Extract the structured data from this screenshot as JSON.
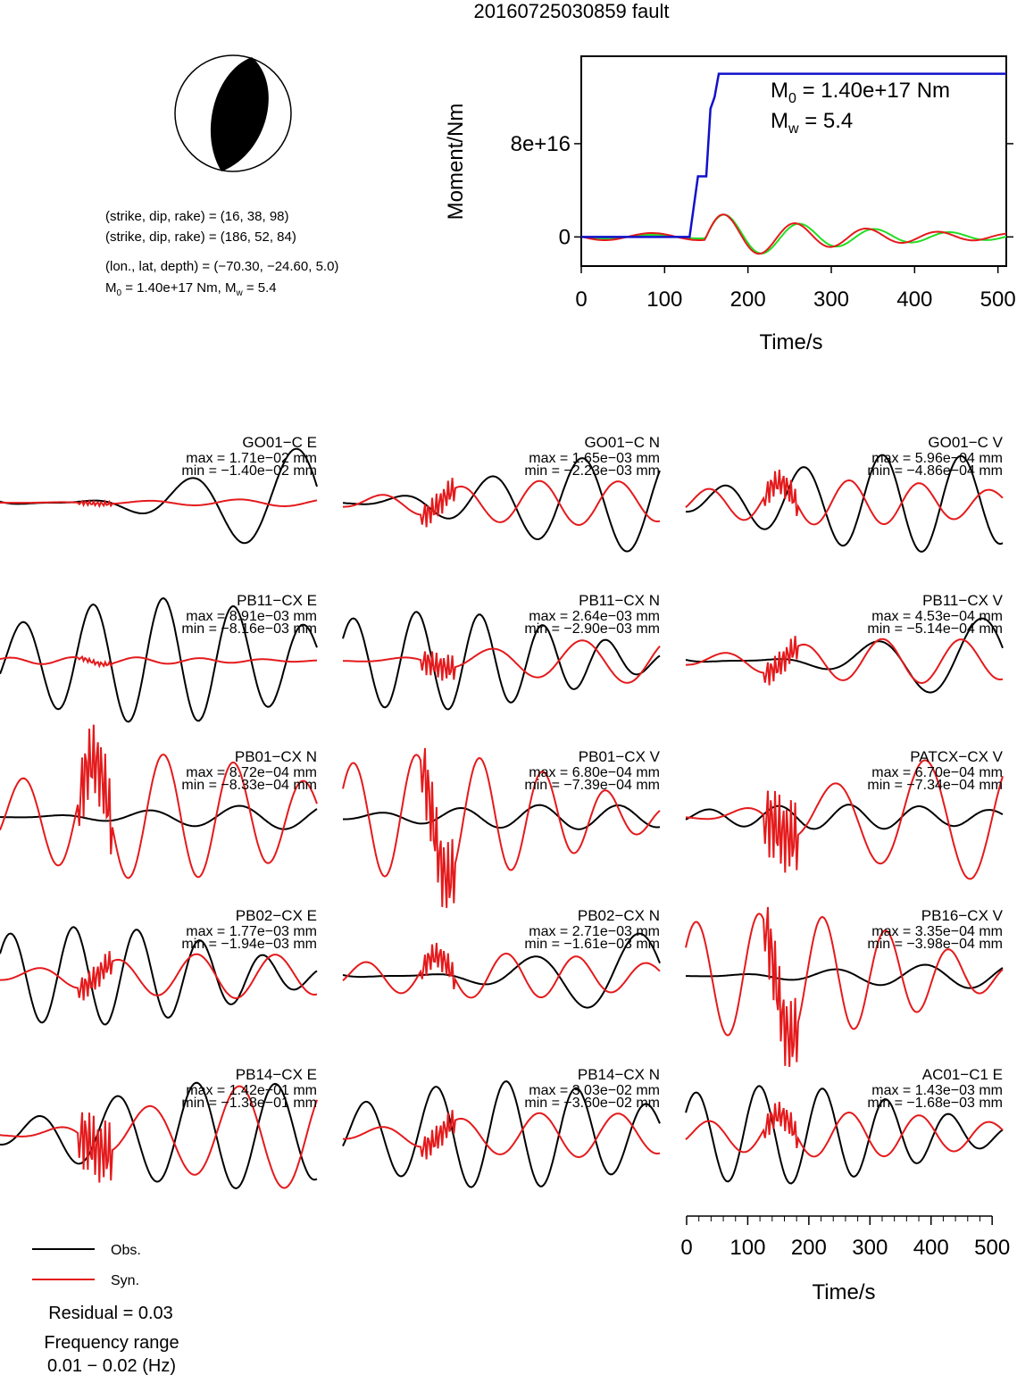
{
  "title": "20160725030859 fault",
  "beachball": {
    "plane1": "(strike, dip, rake) = (16, 38, 98)",
    "plane2": "(strike, dip, rake) = (186, 52, 84)",
    "location": "(lon., lat, depth) = (−70.30, −24.60, 5.0)",
    "moment_prefix": "M",
    "moment_sub": "0",
    "moment_mid": " = 1.40e+17 Nm, M",
    "moment_sub2": "w",
    "moment_end": " = 5.4"
  },
  "stf": {
    "ylabel": "Moment/Nm",
    "xlabel": "Time/s",
    "m0_sym": "M",
    "m0_sub": "0",
    "m0_text": " = 1.40e+17 Nm",
    "mw_sym": "M",
    "mw_sub": "w",
    "mw_text": " = 5.4",
    "ytick_labels": [
      "0",
      "8e+16"
    ],
    "xtick_labels": [
      "0",
      "100",
      "200",
      "300",
      "400",
      "500"
    ]
  },
  "bottom_axis": {
    "xlabel": "Time/s",
    "xtick_labels": [
      "0",
      "100",
      "200",
      "300",
      "400",
      "500"
    ]
  },
  "legend": {
    "obs": "Obs.",
    "syn": "Syn.",
    "residual": "Residual = 0.03",
    "freq_title": "Frequency range",
    "freq_range": "0.01 − 0.02 (Hz)"
  },
  "colors": {
    "observed": "#000000",
    "synthetic": "#e41a1c",
    "moment": "#1010cc",
    "green": "#22dd22"
  },
  "chart_data": [
    {
      "type": "line",
      "title": "",
      "xlabel": "Time/s",
      "ylabel": "Moment/Nm",
      "xlim": [
        0,
        510
      ],
      "ylim": [
        -2.5e+16,
        1.55e+17
      ],
      "series": [
        {
          "name": "",
          "x": [
            0,
            130,
            140,
            150,
            155,
            160,
            165,
            170,
            510
          ],
          "y": [
            0,
            0,
            5.2e+16,
            5.2e+16,
            1.1e+17,
            1.2e+17,
            1.4e+17,
            1.4e+17,
            1.4e+17
          ]
        }
      ],
      "annotations": [
        "M0 = 1.40e+17 Nm",
        "Mw = 5.4"
      ]
    },
    {
      "type": "line",
      "xlabel": "Time/s",
      "xlim": [
        0,
        510
      ],
      "traces": [
        {
          "station": "GO01−C E",
          "max": "max = 1.71e−02 mm",
          "min": "min = −1.40e−02 mm"
        },
        {
          "station": "GO01−C N",
          "max": "max = 1.65e−03 mm",
          "min": "min = −2.23e−03 mm"
        },
        {
          "station": "GO01−C V",
          "max": "max = 5.96e−04 mm",
          "min": "min = −4.86e−04 mm"
        },
        {
          "station": "PB11−CX E",
          "max": "max = 8.91e−03 mm",
          "min": "min = −8.16e−03 mm"
        },
        {
          "station": "PB11−CX N",
          "max": "max = 2.64e−03 mm",
          "min": "min = −2.90e−03 mm"
        },
        {
          "station": "PB11−CX V",
          "max": "max = 4.53e−04 mm",
          "min": "min = −5.14e−04 mm"
        },
        {
          "station": "PB01−CX N",
          "max": "max = 8.72e−04 mm",
          "min": "min = −8.33e−04 mm"
        },
        {
          "station": "PB01−CX V",
          "max": "max = 6.80e−04 mm",
          "min": "min = −7.39e−04 mm"
        },
        {
          "station": "PATCX−CX V",
          "max": "max = 6.70e−04 mm",
          "min": "min = −7.34e−04 mm"
        },
        {
          "station": "PB02−CX E",
          "max": "max = 1.77e−03 mm",
          "min": "min = −1.94e−03 mm"
        },
        {
          "station": "PB02−CX N",
          "max": "max = 2.71e−03 mm",
          "min": "min = −1.61e−03 mm"
        },
        {
          "station": "PB16−CX V",
          "max": "max = 3.35e−04 mm",
          "min": "min = −3.98e−04 mm"
        },
        {
          "station": "PB14−CX E",
          "max": "max = 1.42e−01 mm",
          "min": "min = −1.38e−01 mm"
        },
        {
          "station": "PB14−CX N",
          "max": "max = 3.03e−02 mm",
          "min": "min = −3.60e−02 mm"
        },
        {
          "station": "AC01−C1 E",
          "max": "max = 1.43e−03 mm",
          "min": "min = −1.68e−03 mm"
        }
      ]
    }
  ]
}
